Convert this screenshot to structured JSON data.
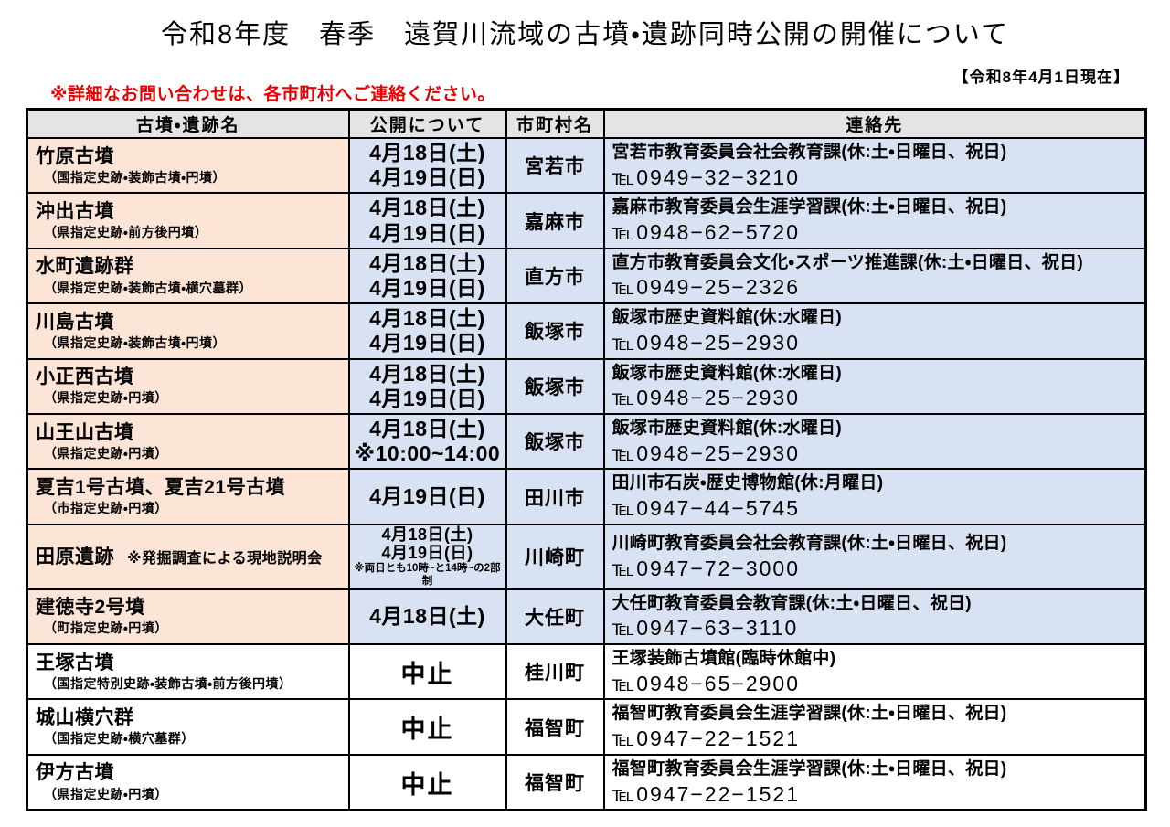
{
  "page": {
    "title": "令和8年度　春季　遠賀川流域の古墳・遺跡同時公開の開催について",
    "as_of_note": "【令和8年4月1日現在】",
    "contact_note": "※詳細なお問い合わせは、各市町村へご連絡ください。"
  },
  "colors": {
    "site_cell_bg": "#fce4d6",
    "open_cell_bg": "#d9e2f3",
    "header_bg": "#e4e4e4",
    "note_red": "#e60000"
  },
  "table": {
    "headers": [
      "古墳・遺跡名",
      "公開について",
      "市町村名",
      "連絡先"
    ],
    "rows": [
      {
        "name": "竹原古墳",
        "category": "（国指定史跡・装飾古墳・円墳）",
        "inline_note": "",
        "dates": [
          "4月18日(土)",
          "4月19日(日)"
        ],
        "dates_note": "",
        "dates_small": false,
        "cancelled": false,
        "municipality": "宮若市",
        "office": "宮若市教育委員会社会教育課(休:土・日曜日、祝日)",
        "tel": "℡0949−32−3210"
      },
      {
        "name": "沖出古墳",
        "category": "（県指定史跡・前方後円墳）",
        "inline_note": "",
        "dates": [
          "4月18日(土)",
          "4月19日(日)"
        ],
        "dates_note": "",
        "dates_small": false,
        "cancelled": false,
        "municipality": "嘉麻市",
        "office": "嘉麻市教育委員会生涯学習課(休:土・日曜日、祝日)",
        "tel": "℡0948−62−5720"
      },
      {
        "name": "水町遺跡群",
        "category": "（県指定史跡・装飾古墳・横穴墓群）",
        "inline_note": "",
        "dates": [
          "4月18日(土)",
          "4月19日(日)"
        ],
        "dates_note": "",
        "dates_small": false,
        "cancelled": false,
        "municipality": "直方市",
        "office": "直方市教育委員会文化・スポーツ推進課(休:土・日曜日、祝日)",
        "tel": "℡0949−25−2326"
      },
      {
        "name": "川島古墳",
        "category": "（県指定史跡・装飾古墳・円墳）",
        "inline_note": "",
        "dates": [
          "4月18日(土)",
          "4月19日(日)"
        ],
        "dates_note": "",
        "dates_small": false,
        "cancelled": false,
        "municipality": "飯塚市",
        "office": "飯塚市歴史資料館(休:水曜日)",
        "tel": "℡0948−25−2930"
      },
      {
        "name": "小正西古墳",
        "category": "（県指定史跡・円墳）",
        "inline_note": "",
        "dates": [
          "4月18日(土)",
          "4月19日(日)"
        ],
        "dates_note": "",
        "dates_small": false,
        "cancelled": false,
        "municipality": "飯塚市",
        "office": "飯塚市歴史資料館(休:水曜日)",
        "tel": "℡0948−25−2930"
      },
      {
        "name": "山王山古墳",
        "category": "（県指定史跡・円墳）",
        "inline_note": "",
        "dates": [
          "4月18日(土)",
          "※10:00~14:00"
        ],
        "dates_note": "",
        "dates_small": false,
        "cancelled": false,
        "municipality": "飯塚市",
        "office": "飯塚市歴史資料館(休:水曜日)",
        "tel": "℡0948−25−2930"
      },
      {
        "name": "夏吉1号古墳、夏吉21号古墳",
        "category": "（市指定史跡・円墳）",
        "inline_note": "",
        "dates": [
          "4月19日(日)"
        ],
        "dates_note": "",
        "dates_small": false,
        "cancelled": false,
        "municipality": "田川市",
        "office": "田川市石炭・歴史博物館(休:月曜日)",
        "tel": "℡0947−44−5745"
      },
      {
        "name": "田原遺跡",
        "category": "",
        "inline_note": "※発掘調査による現地説明会",
        "dates": [
          "4月18日(土)",
          "4月19日(日)"
        ],
        "dates_note": "※両日とも10時~と14時~の2部制",
        "dates_small": true,
        "cancelled": false,
        "municipality": "川崎町",
        "office": "川崎町教育委員会社会教育課(休:土・日曜日、祝日)",
        "tel": "℡0947−72−3000"
      },
      {
        "name": "建徳寺2号墳",
        "category": "（町指定史跡・円墳）",
        "inline_note": "",
        "dates": [
          "4月18日(土)"
        ],
        "dates_note": "",
        "dates_small": false,
        "cancelled": false,
        "municipality": "大任町",
        "office": "大任町教育委員会教育課(休:土・日曜日、祝日)",
        "tel": "℡0947−63−3110"
      },
      {
        "name": "王塚古墳",
        "category": "（国指定特別史跡・装飾古墳・前方後円墳）",
        "inline_note": "",
        "dates": [
          "中止"
        ],
        "dates_note": "",
        "dates_small": false,
        "cancelled": true,
        "municipality": "桂川町",
        "office": "王塚装飾古墳館(臨時休館中)",
        "tel": "℡0948−65−2900"
      },
      {
        "name": "城山横穴群",
        "category": "（国指定史跡・横穴墓群）",
        "inline_note": "",
        "dates": [
          "中止"
        ],
        "dates_note": "",
        "dates_small": false,
        "cancelled": true,
        "municipality": "福智町",
        "office": "福智町教育委員会生涯学習課(休:土・日曜日、祝日)",
        "tel": "℡0947−22−1521"
      },
      {
        "name": "伊方古墳",
        "category": "（県指定史跡・円墳）",
        "inline_note": "",
        "dates": [
          "中止"
        ],
        "dates_note": "",
        "dates_small": false,
        "cancelled": true,
        "municipality": "福智町",
        "office": "福智町教育委員会生涯学習課(休:土・日曜日、祝日)",
        "tel": "℡0947−22−1521"
      }
    ]
  }
}
